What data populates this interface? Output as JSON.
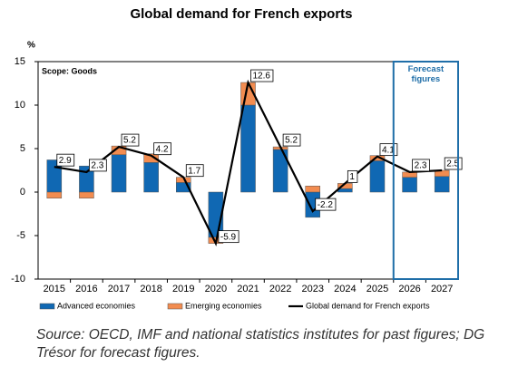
{
  "chart_data": {
    "type": "bar",
    "title": "Global demand for French exports",
    "y_unit": "%",
    "annotation": "Scope: Goods",
    "forecast_label": "Forecast figures",
    "source": "Source: OECD, IMF and national statistics institutes for past figures; DG Trésor for forecast figures.",
    "categories": [
      "2015",
      "2016",
      "2017",
      "2018",
      "2019",
      "2020",
      "2021",
      "2022",
      "2023",
      "2024",
      "2025",
      "2026",
      "2027"
    ],
    "series": [
      {
        "name": "Advanced economies",
        "color": "#1068b3",
        "values": [
          3.7,
          3.0,
          4.3,
          3.4,
          1.1,
          -5.2,
          10.0,
          4.9,
          -2.9,
          0.4,
          3.6,
          1.7,
          1.8
        ]
      },
      {
        "name": "Emerging economies",
        "color": "#f28c50",
        "values": [
          -0.7,
          -0.7,
          1.0,
          1.0,
          0.6,
          -0.7,
          2.6,
          0.3,
          0.7,
          0.6,
          0.6,
          0.6,
          0.7
        ]
      },
      {
        "name": "Global demand for French exports",
        "type": "line",
        "color": "#000000",
        "values": [
          2.9,
          2.3,
          5.2,
          4.2,
          1.7,
          -5.9,
          12.6,
          5.2,
          -2.2,
          1.0,
          4.1,
          2.3,
          2.5
        ]
      }
    ],
    "ylim": [
      -10,
      15
    ],
    "yticks": [
      15,
      10,
      5,
      0,
      -5,
      -10
    ],
    "grid": false
  }
}
